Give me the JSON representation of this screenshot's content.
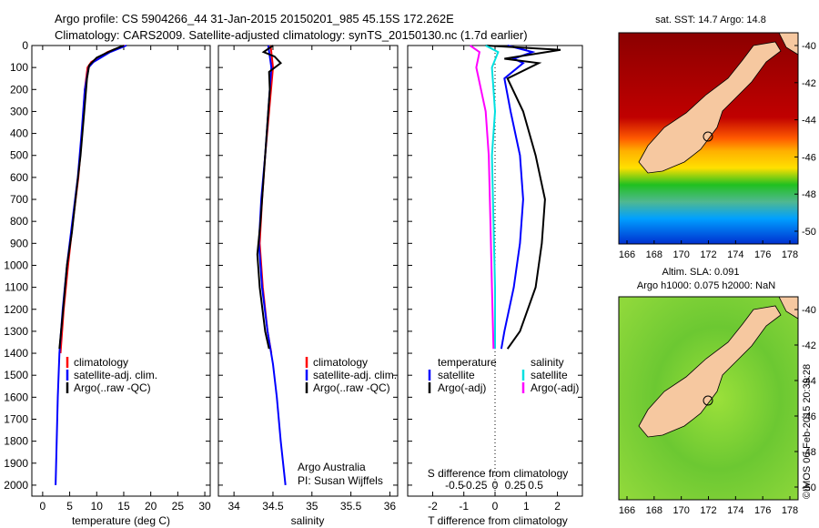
{
  "header": {
    "line1": "Argo profile: CS 5904266_44 31-Jan-2015 20150201_985 45.15S 172.262E",
    "line2": "Climatology: CARS2009. Satellite-adjusted climatology: synTS_20150130.nc (1.7d earlier)"
  },
  "colors": {
    "climatology": "#ff0000",
    "satellite": "#0000ff",
    "argo": "#000000",
    "sat_salinity": "#00e0e0",
    "argo_salinity": "#ff00ff"
  },
  "chart_data": [
    {
      "type": "line",
      "name": "temperature",
      "xlabel": "temperature (deg C)",
      "ylabel": "",
      "xlim": [
        -2,
        31
      ],
      "ylim": [
        2050,
        0
      ],
      "xticks": [
        0,
        5,
        10,
        15,
        20,
        25,
        30
      ],
      "yticks": [
        0,
        100,
        200,
        300,
        400,
        500,
        600,
        700,
        800,
        900,
        1000,
        1100,
        1200,
        1300,
        1400,
        1500,
        1600,
        1700,
        1800,
        1900,
        2000
      ],
      "legend": [
        "climatology",
        "satellite-adj. clim.",
        "Argo(..raw -QC)"
      ],
      "series": [
        {
          "name": "climatology",
          "color": "#ff0000",
          "points": [
            [
              15.2,
              0
            ],
            [
              12,
              30
            ],
            [
              9,
              75
            ],
            [
              8.3,
              100
            ],
            [
              7.8,
              200
            ],
            [
              7.3,
              400
            ],
            [
              6.6,
              600
            ],
            [
              5.6,
              800
            ],
            [
              4.7,
              1000
            ],
            [
              3.9,
              1200
            ],
            [
              3.3,
              1400
            ]
          ]
        },
        {
          "name": "satellite-adj. clim.",
          "color": "#0000ff",
          "points": [
            [
              15.5,
              0
            ],
            [
              12.5,
              30
            ],
            [
              9.4,
              75
            ],
            [
              8.5,
              100
            ],
            [
              7.8,
              200
            ],
            [
              7.2,
              400
            ],
            [
              6.5,
              600
            ],
            [
              5.5,
              800
            ],
            [
              4.5,
              1000
            ],
            [
              3.7,
              1200
            ],
            [
              3.1,
              1400
            ],
            [
              2.8,
              1600
            ],
            [
              2.6,
              1800
            ],
            [
              2.4,
              2000
            ]
          ]
        },
        {
          "name": "Argo(..raw -QC)",
          "color": "#000000",
          "points": [
            [
              15,
              0
            ],
            [
              13,
              20
            ],
            [
              10,
              55
            ],
            [
              8.6,
              90
            ],
            [
              8.2,
              150
            ],
            [
              7.7,
              300
            ],
            [
              7,
              500
            ],
            [
              6.3,
              650
            ],
            [
              5.4,
              850
            ],
            [
              4.5,
              1000
            ],
            [
              3.8,
              1200
            ],
            [
              3.1,
              1380
            ]
          ]
        }
      ]
    },
    {
      "type": "line",
      "name": "salinity",
      "xlabel": "salinity",
      "xlim": [
        33.8,
        36.1
      ],
      "ylim": [
        2050,
        0
      ],
      "xticks": [
        34,
        34.5,
        35,
        35.5,
        36
      ],
      "legend": [
        "climatology",
        "satellite-adj. clim.",
        "Argo(..raw -QC)"
      ],
      "series": [
        {
          "name": "climatology",
          "color": "#ff0000",
          "points": [
            [
              34.47,
              0
            ],
            [
              34.5,
              100
            ],
            [
              34.45,
              300
            ],
            [
              34.4,
              500
            ],
            [
              34.36,
              700
            ],
            [
              34.33,
              900
            ],
            [
              34.37,
              1100
            ],
            [
              34.43,
              1300
            ],
            [
              34.48,
              1400
            ]
          ]
        },
        {
          "name": "satellite-adj. clim.",
          "color": "#0000ff",
          "points": [
            [
              34.44,
              0
            ],
            [
              34.48,
              100
            ],
            [
              34.44,
              300
            ],
            [
              34.4,
              500
            ],
            [
              34.35,
              700
            ],
            [
              34.32,
              900
            ],
            [
              34.36,
              1100
            ],
            [
              34.43,
              1300
            ],
            [
              34.5,
              1450
            ],
            [
              34.55,
              1600
            ],
            [
              34.6,
              1800
            ],
            [
              34.66,
              2000
            ]
          ]
        },
        {
          "name": "Argo(..raw -QC)",
          "color": "#000000",
          "points": [
            [
              34.5,
              0
            ],
            [
              34.38,
              30
            ],
            [
              34.52,
              50
            ],
            [
              34.6,
              80
            ],
            [
              34.45,
              120
            ],
            [
              34.46,
              200
            ],
            [
              34.42,
              400
            ],
            [
              34.38,
              600
            ],
            [
              34.34,
              800
            ],
            [
              34.3,
              950
            ],
            [
              34.33,
              1100
            ],
            [
              34.4,
              1300
            ],
            [
              34.45,
              1380
            ]
          ]
        }
      ]
    },
    {
      "type": "line",
      "name": "difference from climatology",
      "xlabel": "T difference from climatology",
      "xlabel_top": "S difference from climatology",
      "xlim_T": [
        -2.8,
        2.8
      ],
      "xticks_T": [
        -2,
        -1,
        0,
        1,
        2
      ],
      "xticks_S_labels": [
        "-0.5",
        "-0.25",
        "0",
        "0.25",
        "0.5"
      ],
      "ylim": [
        2050,
        0
      ],
      "legend_headers": [
        "temperature",
        "salinity"
      ],
      "legend_temperature": [
        "satellite",
        "Argo(-adj)"
      ],
      "legend_salinity": [
        "satellite",
        "Argo(-adj)"
      ],
      "series": [
        {
          "name": "temperature satellite",
          "color": "#0000ff",
          "points": [
            [
              0.4,
              0
            ],
            [
              1.2,
              30
            ],
            [
              0.6,
              60
            ],
            [
              0.9,
              80
            ],
            [
              0.3,
              150
            ],
            [
              0.5,
              300
            ],
            [
              0.8,
              500
            ],
            [
              0.9,
              700
            ],
            [
              0.8,
              900
            ],
            [
              0.6,
              1100
            ],
            [
              0.3,
              1300
            ],
            [
              0.2,
              1380
            ]
          ]
        },
        {
          "name": "temperature Argo(-adj)",
          "color": "#000000",
          "points": [
            [
              -0.3,
              0
            ],
            [
              2.1,
              20
            ],
            [
              0.3,
              60
            ],
            [
              1.4,
              80
            ],
            [
              0.4,
              150
            ],
            [
              0.9,
              300
            ],
            [
              1.3,
              500
            ],
            [
              1.6,
              700
            ],
            [
              1.5,
              900
            ],
            [
              1.3,
              1100
            ],
            [
              0.8,
              1300
            ],
            [
              0.4,
              1380
            ]
          ]
        },
        {
          "name": "salinity satellite",
          "color": "#00e0e0",
          "points": [
            [
              -0.3,
              0
            ],
            [
              0.1,
              30
            ],
            [
              -0.1,
              100
            ],
            [
              0,
              300
            ],
            [
              -0.1,
              500
            ],
            [
              -0.05,
              800
            ],
            [
              0,
              1100
            ],
            [
              0,
              1380
            ]
          ]
        },
        {
          "name": "salinity Argo(-adj)",
          "color": "#ff00ff",
          "points": [
            [
              -0.8,
              0
            ],
            [
              -0.5,
              30
            ],
            [
              -0.6,
              100
            ],
            [
              -0.3,
              300
            ],
            [
              -0.2,
              500
            ],
            [
              -0.15,
              800
            ],
            [
              -0.1,
              1100
            ],
            [
              -0.05,
              1380
            ]
          ]
        }
      ]
    }
  ],
  "maps": {
    "top": {
      "title": "sat. SST: 14.7 Argo: 14.8",
      "yticks": [
        "-40",
        "-42",
        "-44",
        "-46",
        "-48",
        "-50"
      ],
      "xticks": [
        "166",
        "168",
        "170",
        "172",
        "174",
        "176",
        "178"
      ]
    },
    "bottom": {
      "title1": "Altim. SLA: 0.091",
      "title2": "Argo h1000: 0.075 h2000: NaN",
      "yticks": [
        "-40",
        "-42",
        "-44",
        "-46",
        "-48",
        "-50"
      ],
      "xticks": [
        "166",
        "168",
        "170",
        "172",
        "174",
        "176",
        "178"
      ]
    }
  },
  "annotations": {
    "institution": "Argo Australia",
    "pi": "PI: Susan Wijffels",
    "copyright": "©IMOS 06-Feb-2015 20:39:28"
  }
}
